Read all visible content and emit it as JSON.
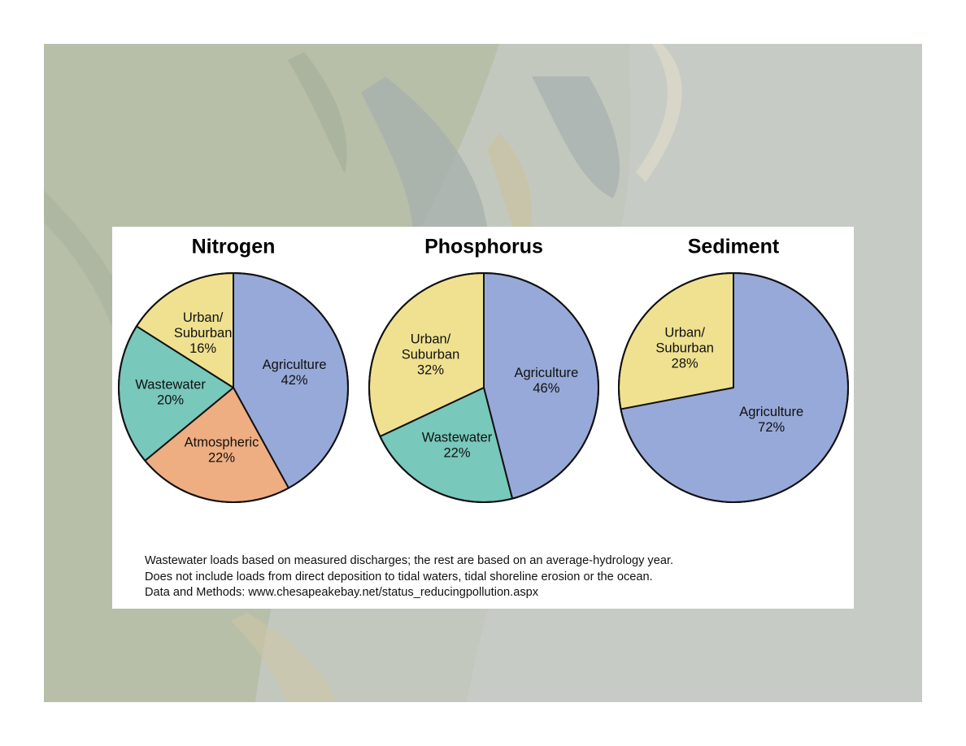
{
  "colors": {
    "agriculture": "#97a9d8",
    "wastewater": "#78c8bb",
    "atmospheric": "#eeae82",
    "urban_suburban": "#efe190"
  },
  "chart_data": [
    {
      "type": "pie",
      "title": "Nitrogen",
      "slices": [
        {
          "label": [
            "Agriculture",
            "42%"
          ],
          "value": 42,
          "color": "#97a9d8"
        },
        {
          "label": [
            "Atmospheric",
            "22%"
          ],
          "value": 22,
          "color": "#eeae82"
        },
        {
          "label": [
            "Wastewater",
            "20%"
          ],
          "value": 20,
          "color": "#78c8bb"
        },
        {
          "label": [
            "Urban/",
            "Suburban",
            "16%"
          ],
          "value": 16,
          "color": "#efe190"
        }
      ]
    },
    {
      "type": "pie",
      "title": "Phosphorus",
      "slices": [
        {
          "label": [
            "Agriculture",
            "46%"
          ],
          "value": 46,
          "color": "#97a9d8"
        },
        {
          "label": [
            "Wastewater",
            "22%"
          ],
          "value": 22,
          "color": "#78c8bb"
        },
        {
          "label": [
            "Urban/",
            "Suburban",
            "32%"
          ],
          "value": 32,
          "color": "#efe190"
        }
      ]
    },
    {
      "type": "pie",
      "title": "Sediment",
      "slices": [
        {
          "label": [
            "Agriculture",
            "72%"
          ],
          "value": 72,
          "color": "#97a9d8"
        },
        {
          "label": [
            "Urban/",
            "Suburban",
            "28%"
          ],
          "value": 28,
          "color": "#efe190"
        }
      ]
    }
  ],
  "footnotes": [
    "Wastewater loads based on measured discharges; the rest are based on an average-hydrology year.",
    "Does not include loads from direct deposition to tidal waters, tidal shoreline erosion or the ocean.",
    "Data and Methods: www.chesapeakebay.net/status_reducingpollution.aspx"
  ]
}
